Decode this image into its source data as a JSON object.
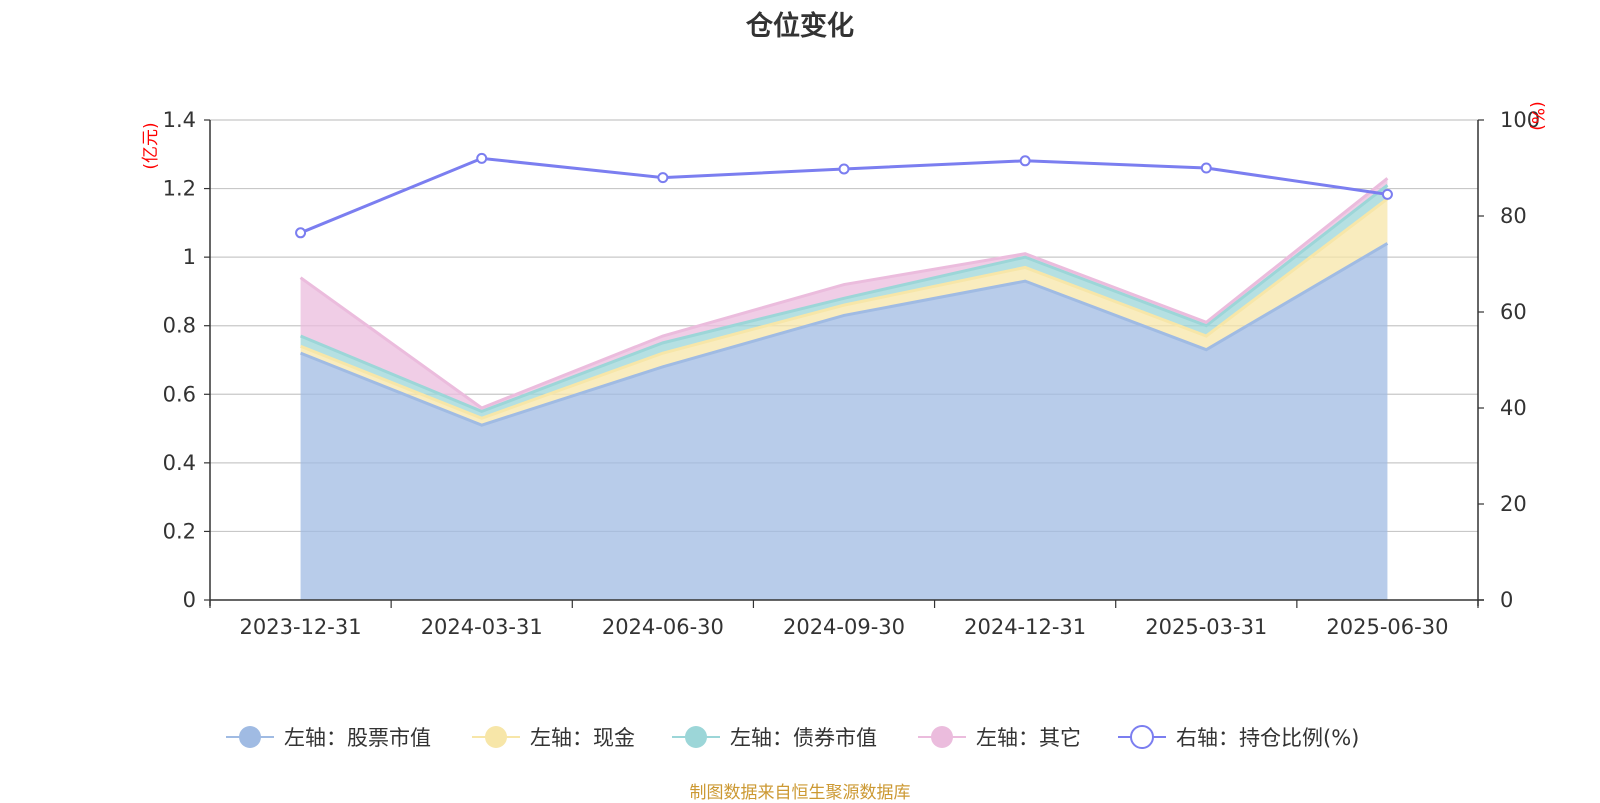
{
  "chart_data": {
    "type": "area",
    "title": "仓位变化",
    "categories": [
      "2023-12-31",
      "2024-03-31",
      "2024-06-30",
      "2024-09-30",
      "2024-12-31",
      "2025-03-31",
      "2025-06-30"
    ],
    "left_axis": {
      "unit": "(亿元)",
      "ylim": [
        0,
        1.4
      ],
      "ticks": [
        "0",
        "0.2",
        "0.4",
        "0.6",
        "0.8",
        "1",
        "1.2",
        "1.4"
      ]
    },
    "right_axis": {
      "unit": "(%)",
      "ylim": [
        0,
        100
      ],
      "ticks": [
        "0",
        "20",
        "40",
        "60",
        "80",
        "100"
      ]
    },
    "stacked_series": [
      {
        "name": "左轴：股票市值",
        "color": "#a0bbe3",
        "values": [
          0.72,
          0.51,
          0.68,
          0.83,
          0.93,
          0.73,
          1.04
        ]
      },
      {
        "name": "左轴：现金",
        "color": "#f7e6a8",
        "values": [
          0.02,
          0.02,
          0.04,
          0.03,
          0.04,
          0.04,
          0.13
        ]
      },
      {
        "name": "左轴：债券市值",
        "color": "#9cd6d8",
        "values": [
          0.03,
          0.02,
          0.03,
          0.02,
          0.03,
          0.03,
          0.04
        ]
      },
      {
        "name": "左轴：其它",
        "color": "#ebbcdd",
        "values": [
          0.17,
          0.01,
          0.02,
          0.04,
          0.01,
          0.01,
          0.02
        ]
      }
    ],
    "line_series": {
      "name": "右轴：持仓比例(%)",
      "color": "#7b7ef0",
      "values": [
        76.5,
        92.0,
        88.0,
        89.8,
        91.5,
        90.0,
        84.5
      ]
    },
    "grid": true,
    "legend_position": "bottom"
  },
  "footer": {
    "source": "制图数据来自恒生聚源数据库"
  }
}
